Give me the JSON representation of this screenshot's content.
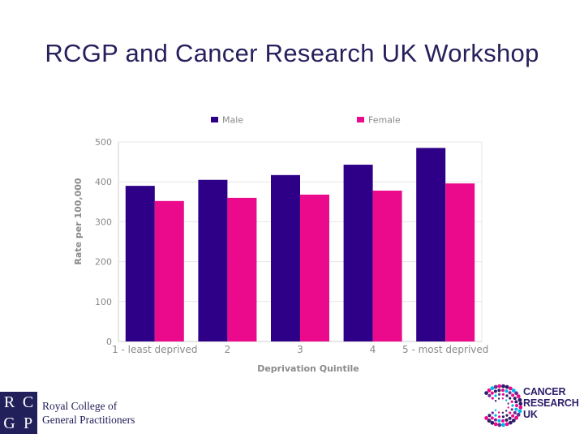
{
  "slide": {
    "title": "RCGP and Cancer Research UK Workshop"
  },
  "logos": {
    "rcgp": {
      "letters": [
        "R",
        "C",
        "G",
        "P"
      ],
      "line1": "Royal College of",
      "line2": "General Practitioners",
      "color": "#22205a"
    },
    "cruk": {
      "line1": "CANCER",
      "line2": "RESEARCH",
      "line3": "UK",
      "color": "#2e1e6a"
    }
  },
  "chart_data": {
    "type": "bar",
    "title": "",
    "xlabel": "Deprivation Quintile",
    "ylabel": "Rate per 100,000",
    "ylim": [
      0,
      500
    ],
    "yticks": [
      0,
      100,
      200,
      300,
      400,
      500
    ],
    "categories": [
      "1 - least deprived",
      "2",
      "3",
      "4",
      "5 - most deprived"
    ],
    "series": [
      {
        "name": "Male",
        "color": "#2e0088",
        "values": [
          390,
          405,
          417,
          443,
          485
        ]
      },
      {
        "name": "Female",
        "color": "#ec0a8c",
        "values": [
          352,
          360,
          368,
          378,
          396
        ]
      }
    ],
    "grid": true,
    "legend": "top"
  }
}
